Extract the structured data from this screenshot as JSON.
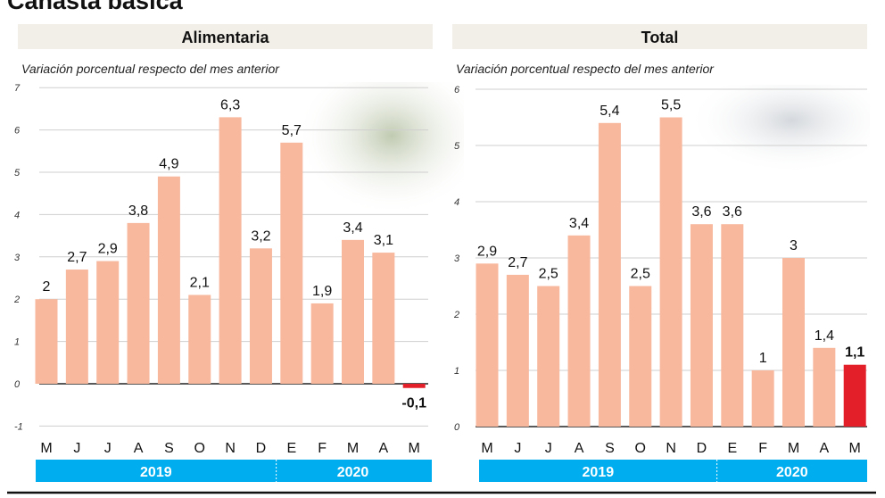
{
  "title": "Canasta básica",
  "chart_data": [
    {
      "type": "bar",
      "title": "Alimentaria",
      "subtitle": "Variación porcentual respecto del mes anterior",
      "categories": [
        "M",
        "J",
        "J",
        "A",
        "S",
        "O",
        "N",
        "D",
        "E",
        "F",
        "M",
        "A",
        "M"
      ],
      "values": [
        2,
        2.7,
        2.9,
        3.8,
        4.9,
        2.1,
        6.3,
        3.2,
        5.7,
        1.9,
        3.4,
        3.1,
        -0.1
      ],
      "labels": [
        "2",
        "2,7",
        "2,9",
        "3,8",
        "4,9",
        "2,1",
        "6,3",
        "3,2",
        "5,7",
        "1,9",
        "3,4",
        "3,1",
        "-0,1"
      ],
      "years": [
        {
          "label": "2019",
          "months": 8
        },
        {
          "label": "2020",
          "months": 5
        }
      ],
      "yticks": [
        -1,
        0,
        1,
        2,
        3,
        4,
        5,
        6,
        7
      ],
      "ylim": [
        -1,
        7
      ],
      "grid": true,
      "colors": {
        "bar": "#f7b89e",
        "highlight": "#e3202a",
        "year_band": "#00aeef",
        "header": "#f2efe8"
      }
    },
    {
      "type": "bar",
      "title": "Total",
      "subtitle": "Variación porcentual respecto del mes anterior",
      "categories": [
        "M",
        "J",
        "J",
        "A",
        "S",
        "O",
        "N",
        "D",
        "E",
        "F",
        "M",
        "A",
        "M"
      ],
      "values": [
        2.9,
        2.7,
        2.5,
        3.4,
        5.4,
        2.5,
        5.5,
        3.6,
        3.6,
        1,
        3,
        1.4,
        1.1
      ],
      "labels": [
        "2,9",
        "2,7",
        "2,5",
        "3,4",
        "5,4",
        "2,5",
        "5,5",
        "3,6",
        "3,6",
        "1",
        "3",
        "1,4",
        "1,1"
      ],
      "years": [
        {
          "label": "2019",
          "months": 8
        },
        {
          "label": "2020",
          "months": 5
        }
      ],
      "yticks": [
        0,
        1,
        2,
        3,
        4,
        5,
        6
      ],
      "ylim": [
        0,
        6
      ],
      "grid": true,
      "colors": {
        "bar": "#f7b89e",
        "highlight": "#e3202a",
        "year_band": "#00aeef",
        "header": "#f2efe8"
      }
    }
  ]
}
